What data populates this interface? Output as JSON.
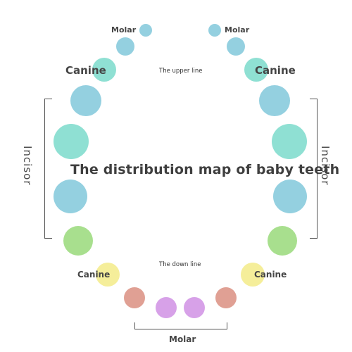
{
  "title": "The distribution map of baby teeth",
  "upper_line_label": "The upper line",
  "down_line_label": "The down line",
  "labels": {
    "molar_upper_left": "Molar",
    "molar_upper_right": "Molar",
    "canine_upper_left": "Canine",
    "canine_upper_right": "Canine",
    "incisor_left": "Incisor",
    "incisor_right": "Incisor",
    "canine_lower_left": "Canine",
    "canine_lower_right": "Canine",
    "molar_bottom": "Molar"
  },
  "colors": {
    "blue": "#94d0e0",
    "teal": "#8fe0d3",
    "green": "#a8df8e",
    "yellow": "#f5ee9a",
    "salmon": "#e0a094",
    "purple": "#d7a1e8",
    "text": "#454545",
    "bracket": "#555555"
  },
  "teeth": [
    {
      "name": "upper-left-molar-small",
      "color": "blue"
    },
    {
      "name": "upper-left-molar",
      "color": "blue"
    },
    {
      "name": "upper-left-canine",
      "color": "teal"
    },
    {
      "name": "upper-left-incisor-1",
      "color": "blue"
    },
    {
      "name": "upper-left-incisor-2",
      "color": "teal"
    },
    {
      "name": "upper-left-incisor-3",
      "color": "blue"
    },
    {
      "name": "lower-left-green",
      "color": "green"
    },
    {
      "name": "lower-left-canine",
      "color": "yellow"
    },
    {
      "name": "lower-left-molar",
      "color": "salmon"
    },
    {
      "name": "bottom-left-molar",
      "color": "purple"
    },
    {
      "name": "bottom-right-molar",
      "color": "purple"
    },
    {
      "name": "lower-right-molar",
      "color": "salmon"
    },
    {
      "name": "lower-right-canine",
      "color": "yellow"
    },
    {
      "name": "lower-right-green",
      "color": "green"
    },
    {
      "name": "upper-right-incisor-3",
      "color": "blue"
    },
    {
      "name": "upper-right-incisor-2",
      "color": "teal"
    },
    {
      "name": "upper-right-incisor-1",
      "color": "blue"
    },
    {
      "name": "upper-right-canine",
      "color": "teal"
    },
    {
      "name": "upper-right-molar",
      "color": "blue"
    },
    {
      "name": "upper-right-molar-small",
      "color": "blue"
    }
  ]
}
